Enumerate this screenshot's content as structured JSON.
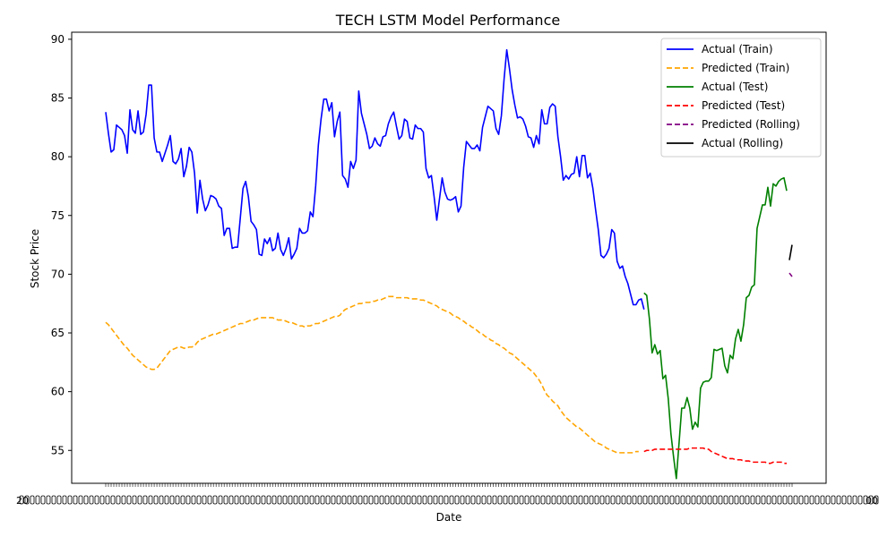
{
  "chart_data": {
    "type": "line",
    "title": "TECH LSTM Model Performance",
    "xlabel": "Date",
    "ylabel": "Stock Price",
    "ylim": [
      52.2,
      90.6
    ],
    "yticks": [
      55,
      60,
      65,
      70,
      75,
      80,
      85,
      90
    ],
    "grid": false,
    "legend_position": "top-right",
    "xtick_labels_overlapping": true,
    "xtick_edge_labels": {
      "left": "20",
      "right": "00"
    },
    "series": [
      {
        "name": "Actual (Train)",
        "color": "#0000ff",
        "style": "solid",
        "start_index": 0,
        "values": [
          83.8,
          82.0,
          80.4,
          80.6,
          82.7,
          82.5,
          82.3,
          81.8,
          80.3,
          84.0,
          82.3,
          82.0,
          83.9,
          81.9,
          82.1,
          83.6,
          86.1,
          86.1,
          81.6,
          80.4,
          80.4,
          79.6,
          80.3,
          81.0,
          81.8,
          79.6,
          79.4,
          79.8,
          80.7,
          78.3,
          79.2,
          80.8,
          80.4,
          78.6,
          75.2,
          78.0,
          76.4,
          75.4,
          75.9,
          76.7,
          76.6,
          76.4,
          75.8,
          75.6,
          73.3,
          73.9,
          73.9,
          72.2,
          72.3,
          72.3,
          74.8,
          77.3,
          77.9,
          76.6,
          74.5,
          74.2,
          73.8,
          71.7,
          71.6,
          73.0,
          72.6,
          73.1,
          72.0,
          72.2,
          73.5,
          72.1,
          71.6,
          72.2,
          73.1,
          71.3,
          71.7,
          72.2,
          73.9,
          73.5,
          73.5,
          73.7,
          75.3,
          74.9,
          77.5,
          81.0,
          83.2,
          84.9,
          84.9,
          83.9,
          84.6,
          81.7,
          83.0,
          83.8,
          78.4,
          78.1,
          77.4,
          79.6,
          79.0,
          79.7,
          85.6,
          83.7,
          82.8,
          81.9,
          80.7,
          80.9,
          81.6,
          81.1,
          80.9,
          81.7,
          81.8,
          82.8,
          83.4,
          83.8,
          82.6,
          81.5,
          81.8,
          83.2,
          83.0,
          81.6,
          81.5,
          82.7,
          82.4,
          82.4,
          82.1,
          79.0,
          78.2,
          78.4,
          76.6,
          74.6,
          76.4,
          78.2,
          77.0,
          76.4,
          76.3,
          76.4,
          76.6,
          75.3,
          75.8,
          79.1,
          81.3,
          81.0,
          80.7,
          80.7,
          81.0,
          80.5,
          82.5,
          83.4,
          84.3,
          84.1,
          83.9,
          82.4,
          81.9,
          83.5,
          86.6,
          89.1,
          87.5,
          85.7,
          84.4,
          83.3,
          83.4,
          83.2,
          82.6,
          81.7,
          81.6,
          80.8,
          81.8,
          81.1,
          84.0,
          82.8,
          82.8,
          84.2,
          84.5,
          84.3,
          81.7,
          80.0,
          78.0,
          78.4,
          78.1,
          78.5,
          78.6,
          80.0,
          78.3,
          80.1,
          80.1,
          78.2,
          78.6,
          77.3,
          75.5,
          73.8,
          71.6,
          71.4,
          71.7,
          72.2,
          73.8,
          73.5,
          71.1,
          70.5,
          70.7,
          69.8,
          69.2,
          68.3,
          67.4,
          67.4,
          67.8,
          67.9,
          67.0
        ]
      },
      {
        "name": "Predicted (Train)",
        "color": "#ffa500",
        "style": "dashed",
        "start_index": 0,
        "values": [
          65.9,
          65.7,
          65.4,
          65.1,
          64.8,
          64.5,
          64.2,
          63.9,
          63.7,
          63.4,
          63.1,
          62.9,
          62.7,
          62.5,
          62.3,
          62.1,
          62.0,
          61.9,
          61.9,
          62.0,
          62.3,
          62.6,
          62.9,
          63.2,
          63.5,
          63.6,
          63.7,
          63.8,
          63.8,
          63.7,
          63.7,
          63.8,
          63.8,
          63.9,
          64.2,
          64.4,
          64.5,
          64.6,
          64.7,
          64.8,
          64.9,
          64.9,
          65.0,
          65.1,
          65.2,
          65.3,
          65.4,
          65.5,
          65.6,
          65.7,
          65.8,
          65.8,
          65.9,
          66.0,
          66.1,
          66.1,
          66.2,
          66.3,
          66.3,
          66.3,
          66.3,
          66.3,
          66.3,
          66.2,
          66.1,
          66.1,
          66.1,
          66.0,
          65.9,
          65.9,
          65.8,
          65.7,
          65.6,
          65.6,
          65.5,
          65.6,
          65.6,
          65.7,
          65.8,
          65.8,
          65.9,
          66.0,
          66.1,
          66.2,
          66.3,
          66.4,
          66.4,
          66.5,
          66.8,
          67.0,
          67.1,
          67.2,
          67.3,
          67.4,
          67.5,
          67.5,
          67.6,
          67.6,
          67.6,
          67.7,
          67.7,
          67.8,
          67.8,
          67.9,
          68.0,
          68.1,
          68.1,
          68.1,
          68.0,
          68.0,
          68.0,
          68.0,
          68.0,
          67.9,
          67.9,
          67.9,
          67.9,
          67.8,
          67.8,
          67.7,
          67.6,
          67.5,
          67.4,
          67.3,
          67.1,
          67.0,
          66.9,
          66.8,
          66.7,
          66.5,
          66.4,
          66.3,
          66.1,
          66.0,
          65.8,
          65.7,
          65.5,
          65.4,
          65.2,
          65.0,
          64.9,
          64.7,
          64.6,
          64.4,
          64.3,
          64.1,
          64.0,
          63.8,
          63.7,
          63.5,
          63.3,
          63.2,
          63.0,
          62.8,
          62.6,
          62.4,
          62.2,
          62.0,
          61.8,
          61.6,
          61.3,
          61.0,
          60.6,
          60.1,
          59.7,
          59.5,
          59.2,
          59.0,
          58.8,
          58.4,
          58.1,
          57.8,
          57.6,
          57.4,
          57.2,
          57.0,
          56.9,
          56.7,
          56.5,
          56.3,
          56.1,
          55.9,
          55.7,
          55.6,
          55.5,
          55.4,
          55.2,
          55.1,
          55.0,
          54.9,
          54.8,
          54.8,
          54.8,
          54.8,
          54.8,
          54.8,
          54.8,
          54.9,
          54.9
        ]
      },
      {
        "name": "Actual (Test)",
        "color": "#008000",
        "style": "solid",
        "start_index": 200,
        "values": [
          68.4,
          68.2,
          66.2,
          63.3,
          64.0,
          63.2,
          63.5,
          61.1,
          61.4,
          59.4,
          56.4,
          54.4,
          52.6,
          55.6,
          58.6,
          58.6,
          59.5,
          58.6,
          56.8,
          57.4,
          57.0,
          60.3,
          60.8,
          60.9,
          60.9,
          61.2,
          63.6,
          63.5,
          63.6,
          63.7,
          62.2,
          61.6,
          63.1,
          62.8,
          64.5,
          65.3,
          64.3,
          65.7,
          68.0,
          68.2,
          68.9,
          69.1,
          73.9,
          74.9,
          75.9,
          75.9,
          77.4,
          75.8,
          77.7,
          77.5,
          77.9,
          78.1,
          78.2,
          77.1
        ]
      },
      {
        "name": "Predicted (Test)",
        "color": "#ff0000",
        "style": "dashed",
        "start_index": 200,
        "values": [
          54.9,
          55.0,
          55.0,
          55.0,
          55.1,
          55.1,
          55.1,
          55.1,
          55.1,
          55.1,
          55.1,
          55.1,
          55.1,
          55.1,
          55.1,
          55.1,
          55.1,
          55.2,
          55.2,
          55.2,
          55.2,
          55.2,
          55.2,
          55.1,
          55.1,
          54.9,
          54.8,
          54.7,
          54.6,
          54.5,
          54.4,
          54.3,
          54.3,
          54.3,
          54.2,
          54.2,
          54.2,
          54.1,
          54.1,
          54.1,
          54.0,
          54.0,
          54.0,
          54.0,
          54.0,
          54.0,
          53.9,
          53.9,
          54.0,
          54.0,
          54.0,
          54.0,
          53.9,
          53.9
        ]
      },
      {
        "name": "Predicted (Rolling)",
        "color": "#800080",
        "style": "dashed",
        "start_index": 254,
        "values": [
          70.1,
          69.8
        ]
      },
      {
        "name": "Actual (Rolling)",
        "color": "#000000",
        "style": "solid",
        "start_index": 254,
        "values": [
          71.2,
          72.5
        ]
      }
    ]
  }
}
